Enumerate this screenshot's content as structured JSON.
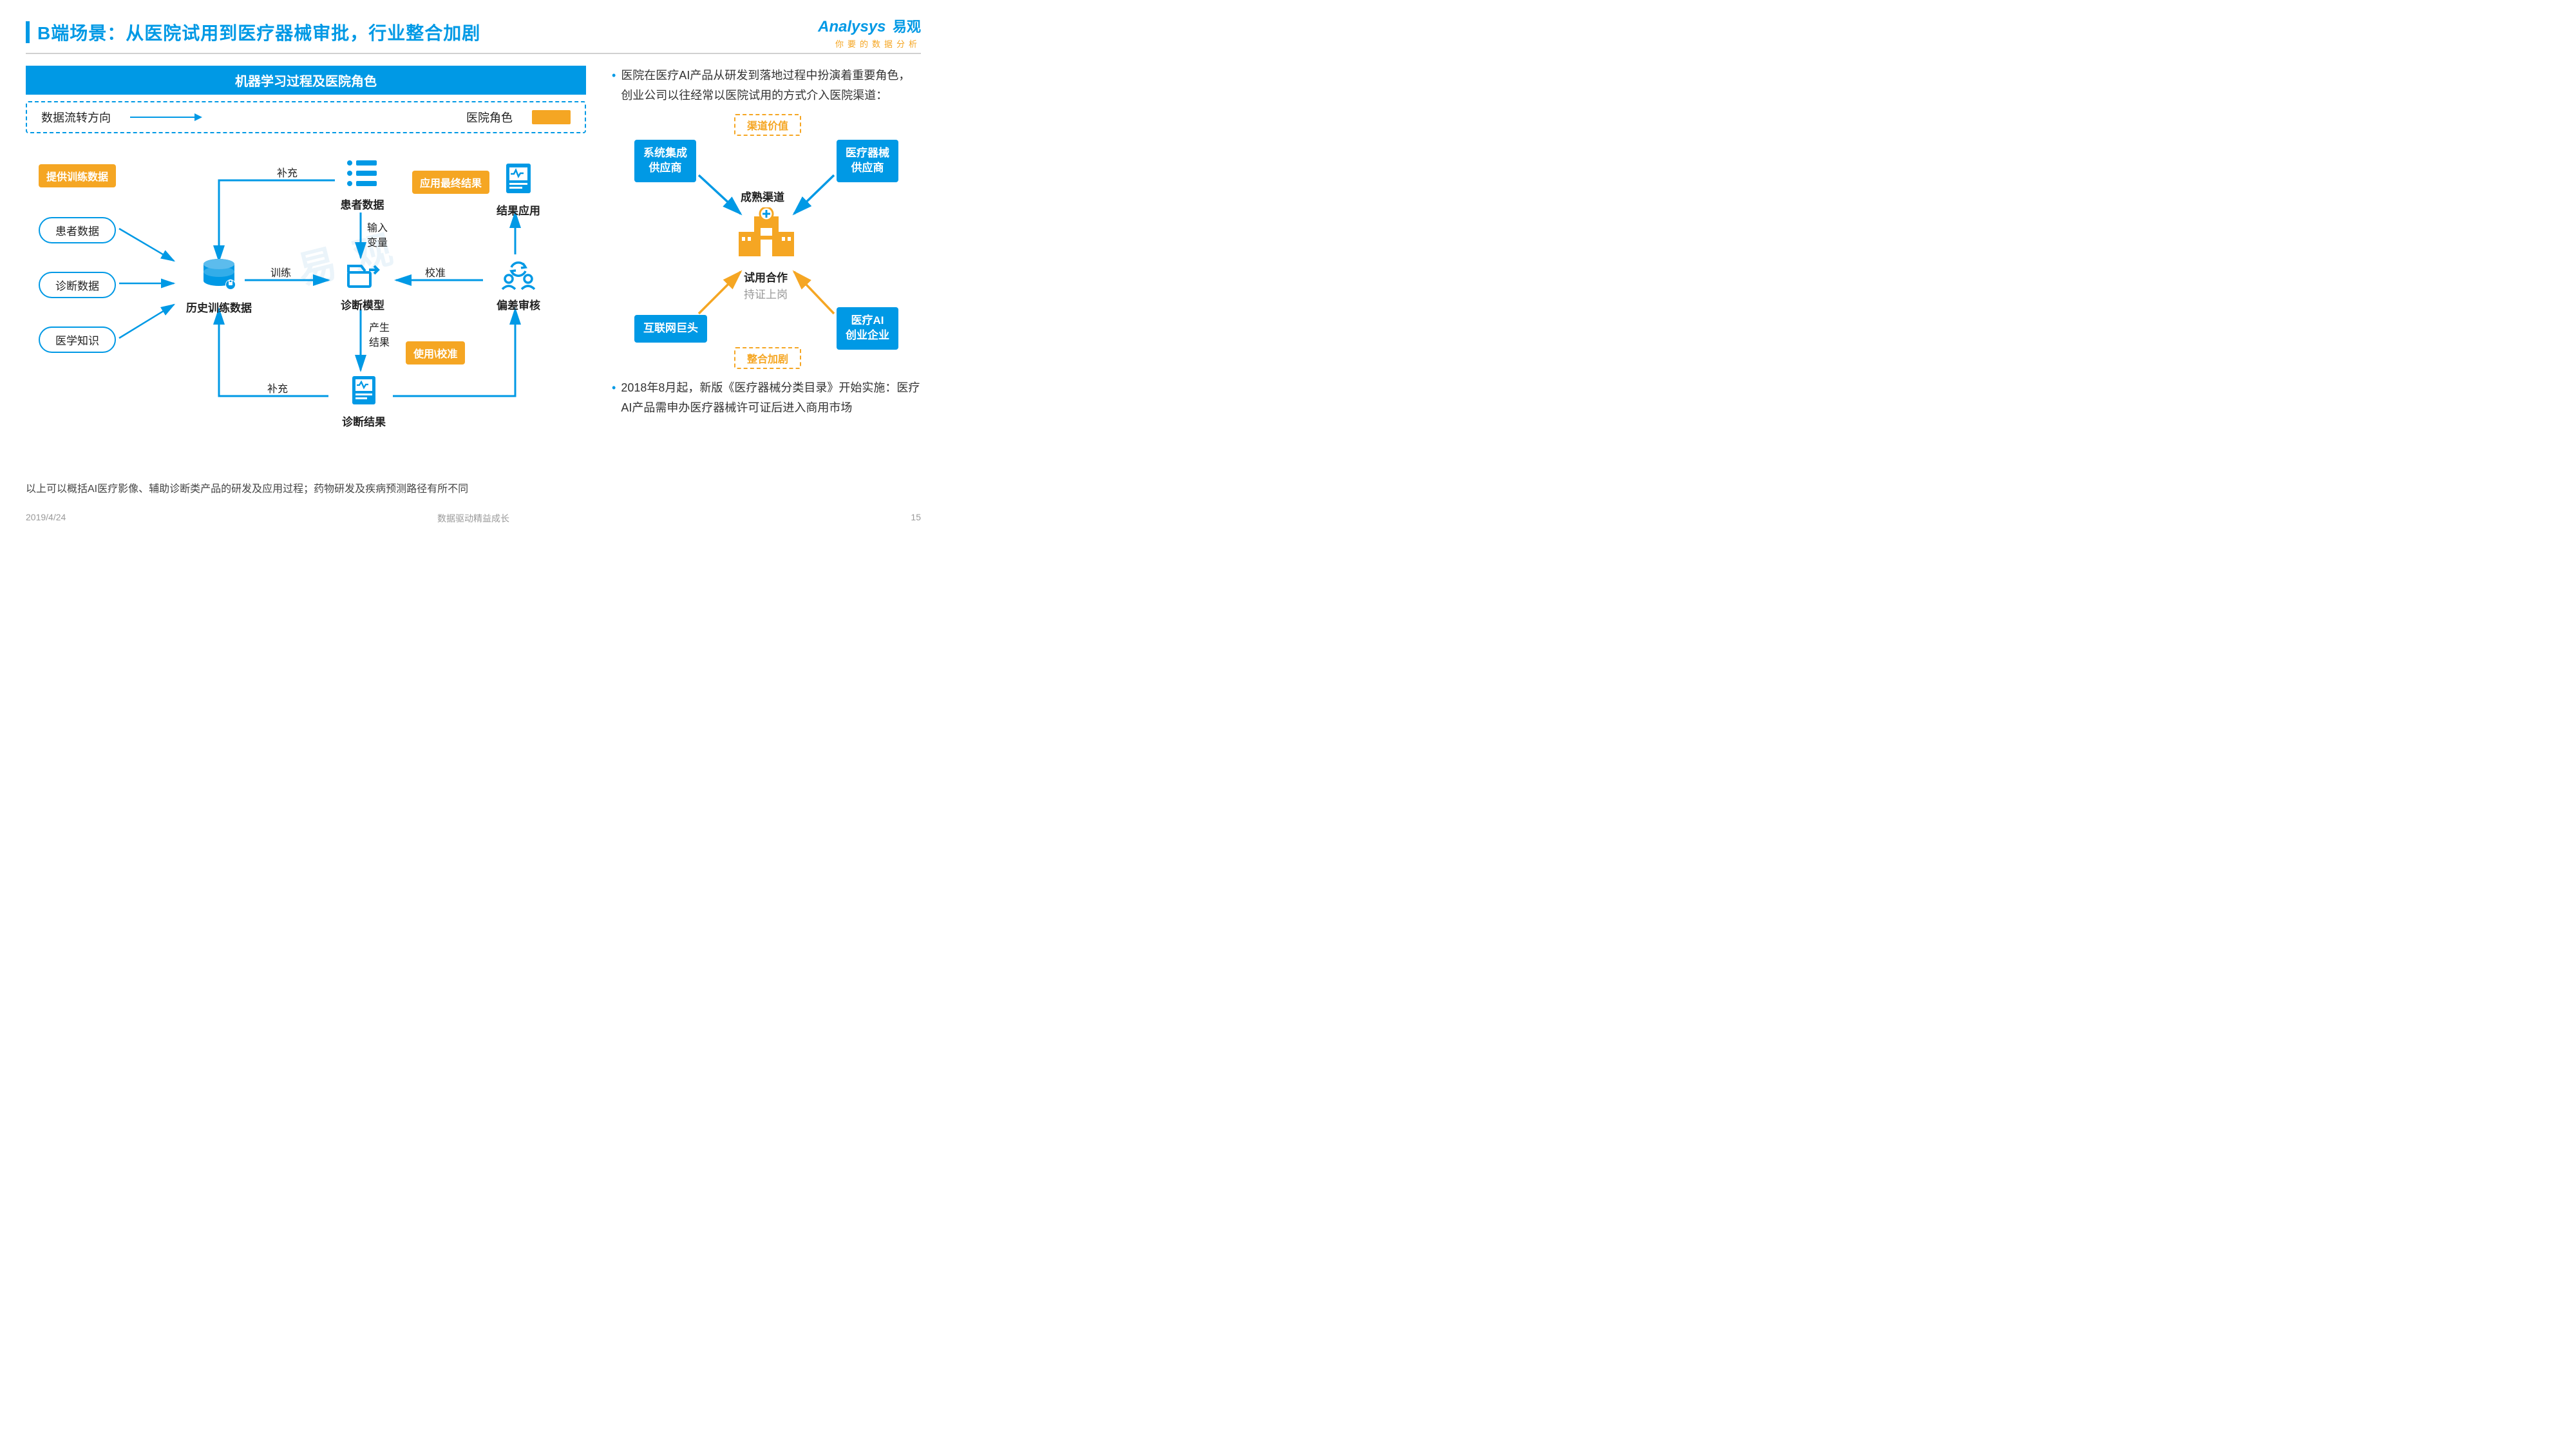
{
  "colors": {
    "primary_blue": "#0099e5",
    "accent_orange": "#f5a623",
    "text_dark": "#222222",
    "text_gray": "#999999",
    "divider": "#d0d0d0",
    "background": "#ffffff",
    "watermark": "rgba(120,180,220,0.15)"
  },
  "typography": {
    "title_fontsize": 28,
    "body_fontsize": 17,
    "small_fontsize": 14,
    "font_family": "Microsoft YaHei"
  },
  "header": {
    "title": "B端场景：从医院试用到医疗器械审批，行业整合加剧"
  },
  "logo": {
    "brand_en": "Analysys",
    "brand_cn": "易观",
    "tagline": "你要的数据分析"
  },
  "left": {
    "section_title": "机器学习过程及医院角色",
    "legend": {
      "flow_label": "数据流转方向",
      "role_label": "医院角色"
    },
    "orange_tags": {
      "provide_training": "提供训练数据",
      "apply_result": "应用最终结果",
      "use_calibrate": "使用\\校准"
    },
    "pills": {
      "patient_data_src": "患者数据",
      "diagnosis_data_src": "诊断数据",
      "medical_knowledge": "医学知识"
    },
    "nodes": {
      "history_db": "历史训练数据",
      "patient_data": "患者数据",
      "model": "诊断模型",
      "result": "诊断结果",
      "bias_review": "偏差审核",
      "result_app": "结果应用"
    },
    "edges": {
      "supplement_top": "补充",
      "train": "训练",
      "input_var_1": "输入",
      "input_var_2": "变量",
      "calibrate": "校准",
      "produce_1": "产生",
      "produce_2": "结果",
      "supplement_bottom": "补充"
    },
    "footnote": "以上可以概括AI医疗影像、辅助诊断类产品的研发及应用过程；药物研发及疾病预测路径有所不同"
  },
  "right": {
    "bullet_top": "医院在医疗AI产品从研发到落地过程中扮演着重要角色，创业公司以往经常以医院试用的方式介入医院渠道：",
    "bullet_bottom": "2018年8月起，新版《医疗器械分类目录》开始实施：医疗AI产品需申办医疗器械许可证后进入商用市场",
    "badges": {
      "channel_value": "渠道价值",
      "consolidation": "整合加剧"
    },
    "boxes": {
      "sys_integrator": "系统集成\n供应商",
      "device_supplier": "医疗器械\n供应商",
      "internet_giant": "互联网巨头",
      "ai_startup": "医疗AI\n创业企业"
    },
    "center": {
      "mature_channel": "成熟渠道",
      "trial": "试用合作",
      "cert": "持证上岗"
    }
  },
  "footer": {
    "date": "2019/4/24",
    "caption": "数据驱动精益成长",
    "page": "15"
  },
  "watermark": "易 观"
}
